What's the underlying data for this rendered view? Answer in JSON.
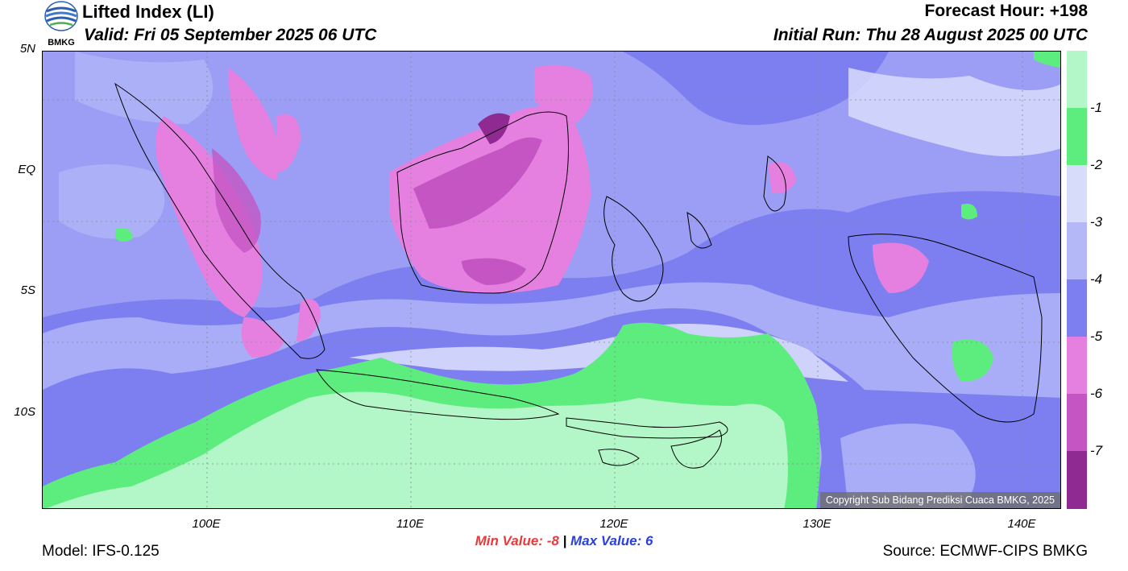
{
  "header": {
    "title": "Lifted Index (LI)",
    "valid": "Valid: Fri 05 September 2025 06 UTC",
    "forecast_hour": "Forecast Hour: +198",
    "initial_run": "Initial Run: Thu 28 August 2025 00 UTC",
    "logo_text": "BMKG"
  },
  "map": {
    "lat_labels": [
      "5N",
      "EQ",
      "5S",
      "10S"
    ],
    "lon_labels": [
      "100E",
      "110E",
      "120E",
      "130E",
      "140E"
    ],
    "copyright": "Copyright Sub Bidang Prediksi Cuaca BMKG, 2025",
    "ocean_color": "#7d7ff0"
  },
  "colorbar": {
    "labels": [
      "-1",
      "-2",
      "-3",
      "-4",
      "-5",
      "-6",
      "-7"
    ],
    "colors": [
      "#b3f7c8",
      "#5ded7f",
      "#d8dcfb",
      "#b4b8f7",
      "#7d7ff0",
      "#e680e0",
      "#c455c3",
      "#8f2a92"
    ]
  },
  "stats": {
    "min_label": "Min Value:",
    "min_value": "-8",
    "separator": "|",
    "max_label": "Max Value:",
    "max_value": "6"
  },
  "footer": {
    "model": "Model: IFS-0.125",
    "source": "Source: ECMWF-CIPS BMKG"
  }
}
